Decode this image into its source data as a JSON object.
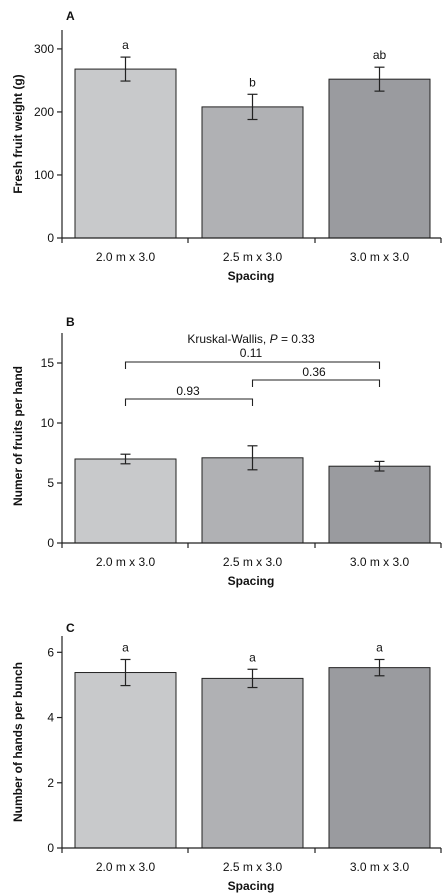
{
  "chart_data": [
    {
      "panel": "A",
      "type": "bar",
      "categories": [
        "2.0 m x 3.0",
        "2.5 m x 3.0",
        "3.0 m x 3.0"
      ],
      "values": [
        268,
        208,
        252
      ],
      "errors": [
        19,
        20,
        19
      ],
      "bar_colors": [
        "#c8c9cb",
        "#b0b1b4",
        "#9a9b9f"
      ],
      "significance": [
        "a",
        "b",
        "ab"
      ],
      "xlabel": "Spacing",
      "ylabel": "Fresh fruit weight (g)",
      "ylim": [
        0,
        330
      ],
      "yticks": [
        0,
        100,
        200,
        300
      ],
      "grid": false
    },
    {
      "panel": "B",
      "type": "bar",
      "categories": [
        "2.0 m x 3.0",
        "2.5 m x 3.0",
        "3.0 m x 3.0"
      ],
      "values": [
        7.0,
        7.1,
        6.4
      ],
      "errors": [
        0.4,
        1.0,
        0.4
      ],
      "bar_colors": [
        "#c8c9cb",
        "#b0b1b4",
        "#9a9b9f"
      ],
      "xlabel": "Spacing",
      "ylabel": "Numer of fruits per hand",
      "ylim": [
        0,
        17.5
      ],
      "yticks": [
        0,
        5,
        10,
        15
      ],
      "grid": false,
      "test": {
        "prefix": "Kruskal-Wallis, ",
        "p_symbol": "P",
        "suffix": " = 0.33"
      },
      "comparisons": [
        {
          "from": 0,
          "to": 2,
          "label": "0.11"
        },
        {
          "from": 1,
          "to": 2,
          "label": "0.36"
        },
        {
          "from": 0,
          "to": 1,
          "label": "0.93"
        }
      ]
    },
    {
      "panel": "C",
      "type": "bar",
      "categories": [
        "2.0 m x 3.0",
        "2.5 m x 3.0",
        "3.0 m x 3.0"
      ],
      "values": [
        5.38,
        5.2,
        5.53
      ],
      "errors": [
        0.4,
        0.28,
        0.25
      ],
      "bar_colors": [
        "#c8c9cb",
        "#b0b1b4",
        "#9a9b9f"
      ],
      "significance": [
        "a",
        "a",
        "a"
      ],
      "xlabel": "Spacing",
      "ylabel": "Number of hands per bunch",
      "ylim": [
        0,
        6.5
      ],
      "yticks": [
        0,
        2,
        4,
        6
      ],
      "grid": false
    }
  ]
}
